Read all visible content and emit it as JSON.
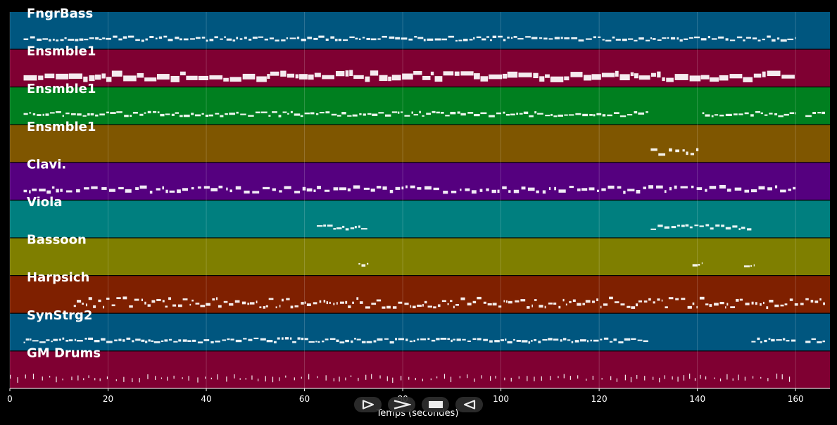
{
  "chart_data": {
    "type": "piano-roll",
    "xlabel": "Temps (secondes)",
    "xlim": [
      0,
      167
    ],
    "x_ticks": [
      0,
      20,
      40,
      60,
      80,
      100,
      120,
      140,
      160
    ],
    "x_tick_labels": [
      "0",
      "20",
      "40",
      "60",
      "80",
      "100",
      "120",
      "140",
      "160"
    ],
    "grid": true,
    "series": [
      {
        "name": "FngrBass",
        "color": "#00567f",
        "note_style": "thin",
        "activity": [
          [
            2.8,
            160
          ]
        ]
      },
      {
        "name": "Ensmble1",
        "color": "#7f0032",
        "note_style": "thick",
        "activity": [
          [
            2.8,
            160
          ]
        ]
      },
      {
        "name": "Ensmble1",
        "color": "#007f1f",
        "note_style": "thin",
        "activity": [
          [
            2.8,
            130
          ],
          [
            141,
            160
          ],
          [
            162,
            166
          ]
        ]
      },
      {
        "name": "Ensmble1",
        "color": "#7f5600",
        "note_style": "medium",
        "activity": [
          [
            130.5,
            140.5
          ]
        ]
      },
      {
        "name": "Clavi.",
        "color": "#55007f",
        "note_style": "medium",
        "activity": [
          [
            2.8,
            160
          ]
        ]
      },
      {
        "name": "Viola",
        "color": "#007f7f",
        "note_style": "thin",
        "activity": [
          [
            62.5,
            73
          ],
          [
            130.5,
            151
          ]
        ]
      },
      {
        "name": "Bassoon",
        "color": "#7f7f00",
        "note_style": "thin",
        "activity": [
          [
            71,
            73
          ],
          [
            139,
            141
          ],
          [
            149.5,
            151.5
          ]
        ]
      },
      {
        "name": "Harpsich",
        "color": "#7f2000",
        "note_style": "mixed",
        "activity": [
          [
            13,
            166
          ]
        ]
      },
      {
        "name": "SynStrg2",
        "color": "#00567f",
        "note_style": "thin",
        "activity": [
          [
            2.8,
            130
          ],
          [
            151,
            160
          ],
          [
            162,
            166
          ]
        ]
      },
      {
        "name": "GM Drums",
        "color": "#7f0032",
        "note_style": "drums",
        "activity": [
          [
            0,
            160
          ]
        ]
      }
    ]
  },
  "controls": [
    {
      "name": "play-button",
      "icon": "play-outline-icon"
    },
    {
      "name": "fast-forward-button",
      "icon": "chevron-right-icon"
    },
    {
      "name": "stop-button",
      "icon": "stop-icon"
    },
    {
      "name": "rewind-button",
      "icon": "play-back-outline-icon"
    }
  ]
}
